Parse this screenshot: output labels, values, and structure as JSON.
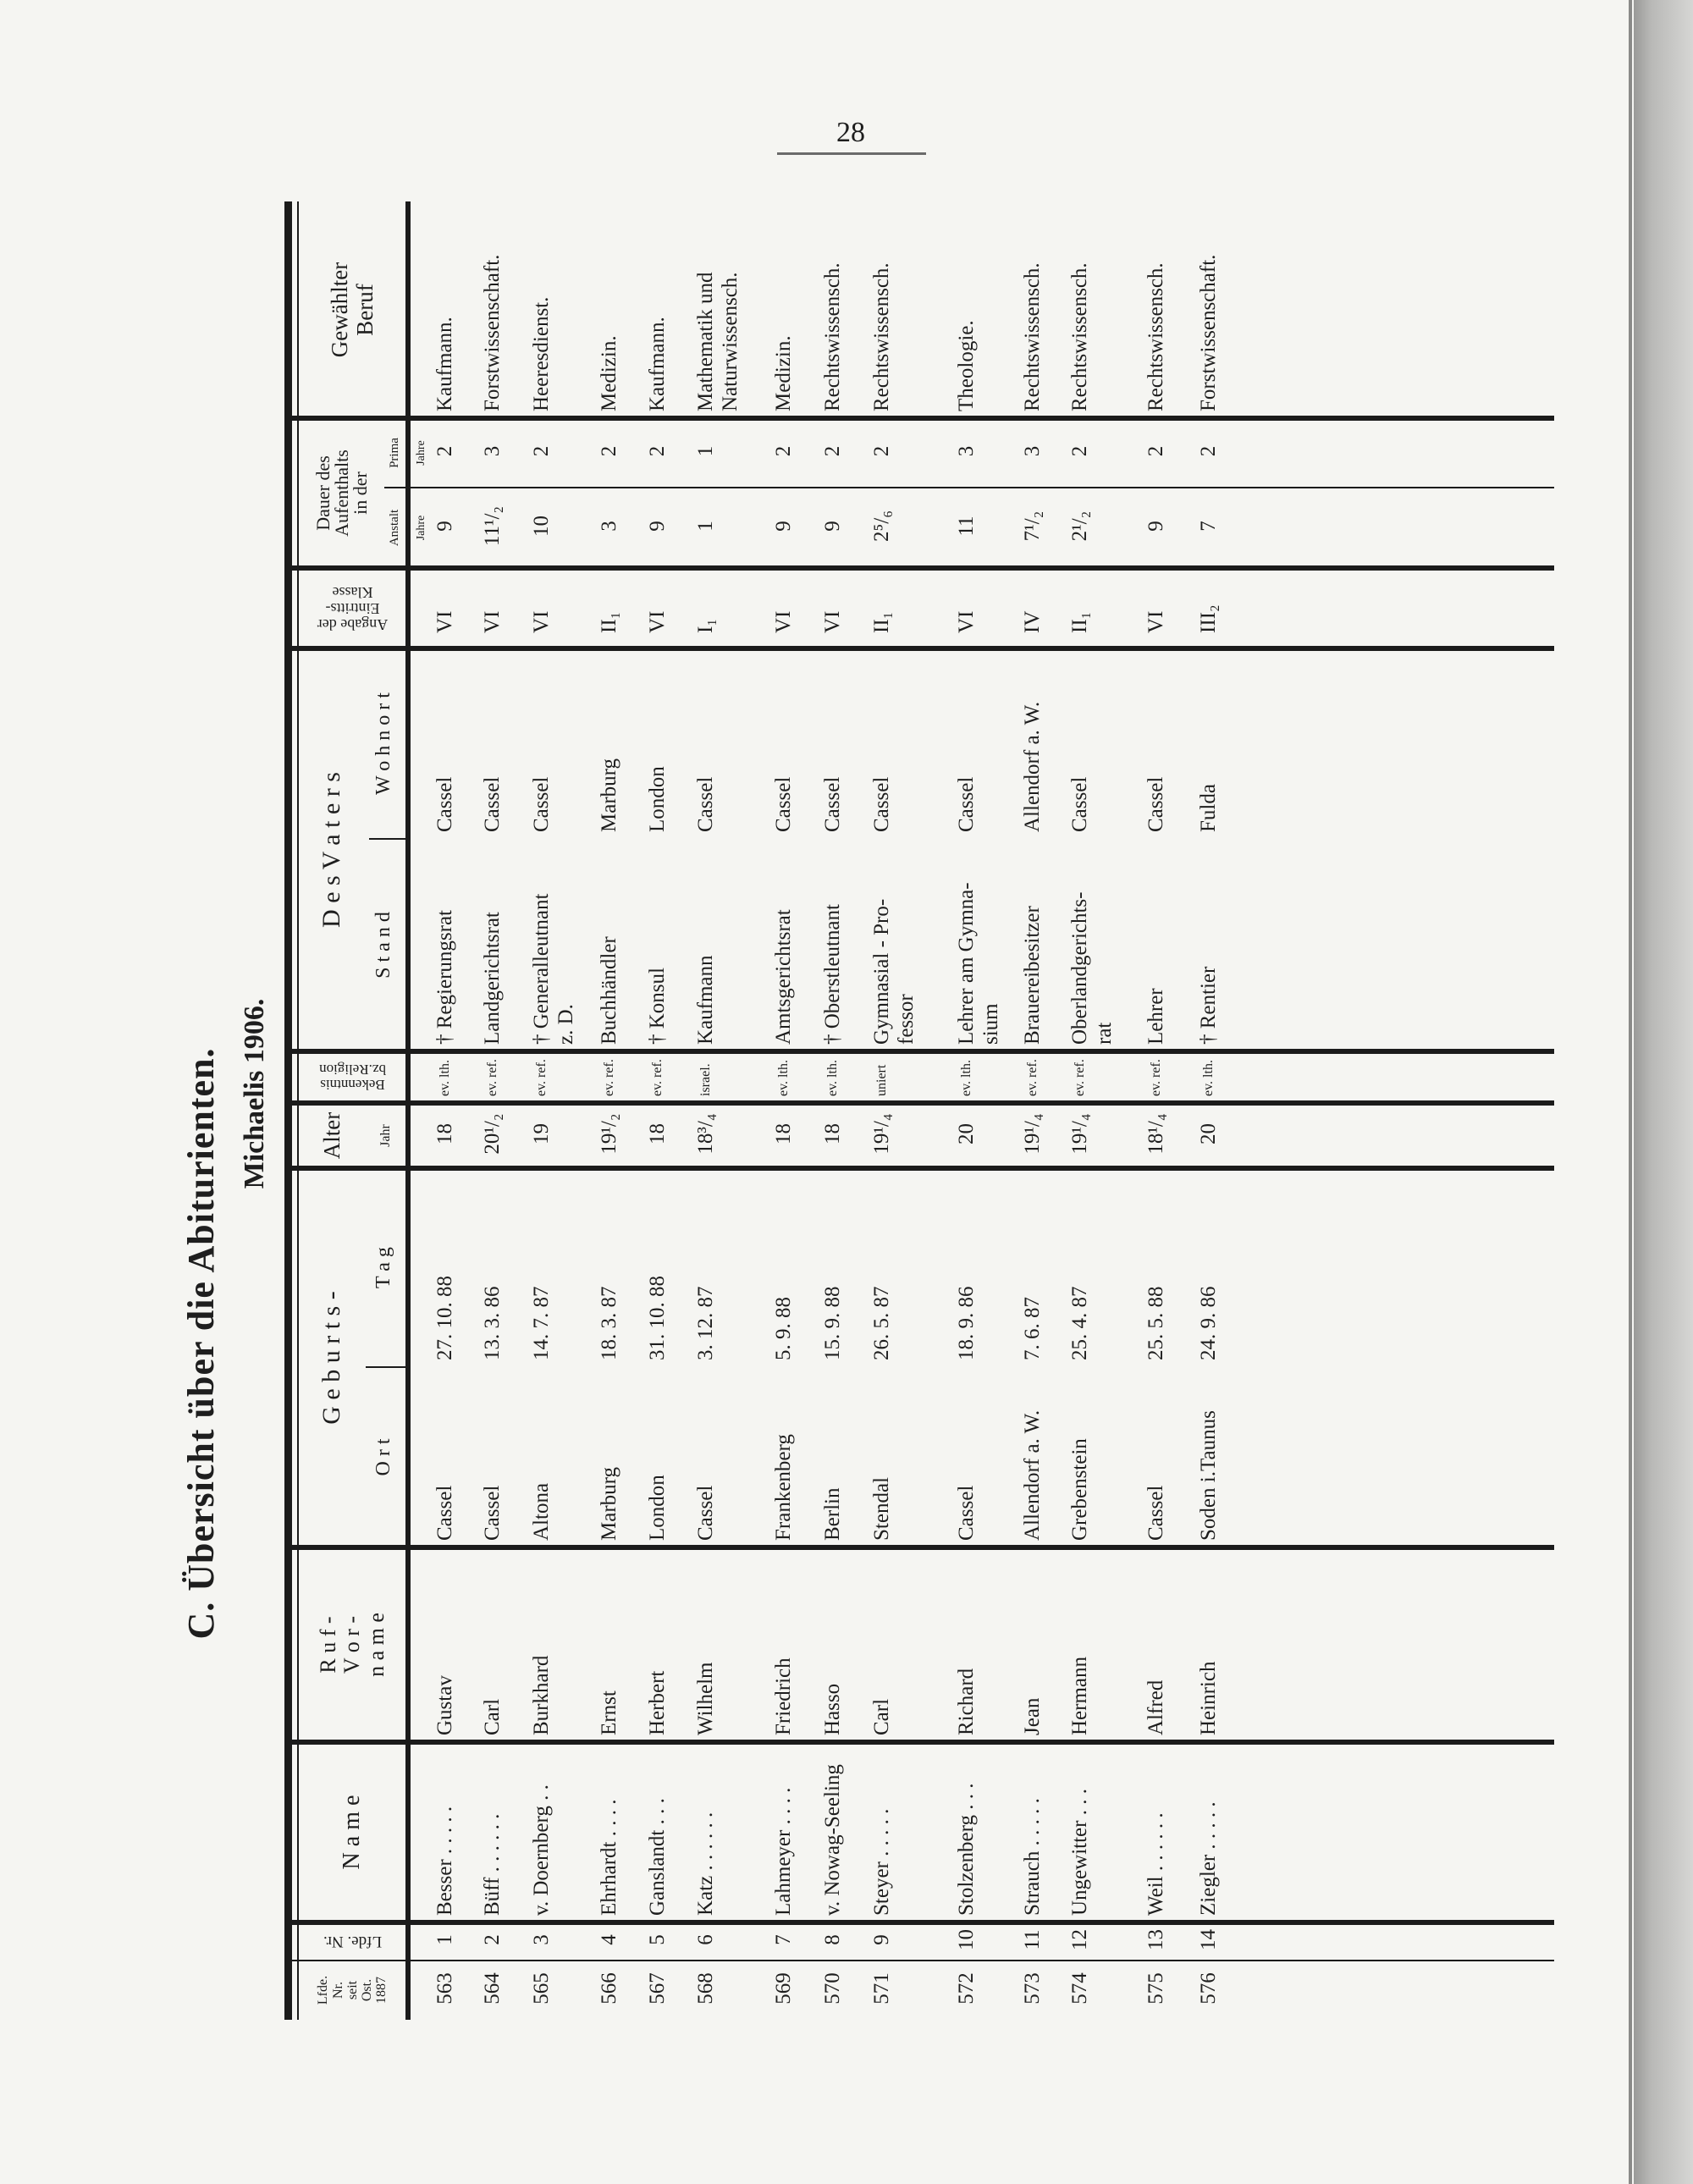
{
  "page_number": "28",
  "title": "C.   Übersicht über die Abiturienten.",
  "subtitle": "Michaelis 1906.",
  "headers": {
    "lfd_seit": "Lfde.\nNr.\nseit\nOst.\n1887",
    "lfd_nr": "Lfde. Nr.",
    "name": "N a m e",
    "rufname": "R u f -\nV o r -\nn a m e",
    "geburts": "G e b u r t s -",
    "ort": "O r t",
    "tag": "T a g",
    "alter": "Alter",
    "alter_unit": "Jahr",
    "bekenntnis": "Bekenntnis\nbz.Religion",
    "vaters": "D e s    V a t e r s",
    "stand": "S t a n d",
    "wohnort": "W o h n o r t",
    "klasse": "Angabe der\nEintritts-\nKlasse",
    "dauer": "Dauer des\nAufenthalts\nin der",
    "anstalt": "Anstalt",
    "prima": "Prima",
    "jahre_anstalt": "Jahre",
    "jahre_prima": "Jahre",
    "beruf": "Gewählter\nBeruf"
  },
  "rows": [
    {
      "seit": "563",
      "nr": "1",
      "name": "Besser . . . . .",
      "rufname": "Gustav",
      "ort": "Cassel",
      "tag": "27. 10. 88",
      "alter": "18",
      "bekenntnis": "ev. lth.",
      "stand": "† Regierungsrat",
      "wohnort": "Cassel",
      "klasse": "VI",
      "anstalt": "9",
      "prima": "2",
      "beruf": "Kaufmann."
    },
    {
      "seit": "564",
      "nr": "2",
      "name": "Büff . . . . . .",
      "rufname": "Carl",
      "ort": "Cassel",
      "tag": "13.  3. 86",
      "alter": "20¹/₂",
      "bekenntnis": "ev. ref.",
      "stand": "Landgerichtsrat",
      "wohnort": "Cassel",
      "klasse": "VI",
      "anstalt": "11¹/₂",
      "prima": "3",
      "beruf": "Forstwissenschaft."
    },
    {
      "seit": "565",
      "nr": "3",
      "name": "v. Doernberg . .",
      "rufname": "Burkhard",
      "ort": "Altona",
      "tag": "14.  7. 87",
      "alter": "19",
      "bekenntnis": "ev. ref.",
      "stand": "† Generalleutnant\n   z. D.",
      "wohnort": "Cassel",
      "klasse": "VI",
      "anstalt": "10",
      "prima": "2",
      "beruf": "Heeresdienst."
    },
    {
      "seit": "566",
      "nr": "4",
      "name": "Ehrhardt . . . .",
      "rufname": "Ernst",
      "ort": "Marburg",
      "tag": "18.  3. 87",
      "alter": "19¹/₂",
      "bekenntnis": "ev. ref.",
      "stand": "Buchhändler",
      "wohnort": "Marburg",
      "klasse": "II₁",
      "anstalt": "3",
      "prima": "2",
      "beruf": "Medizin."
    },
    {
      "seit": "567",
      "nr": "5",
      "name": "Ganslandt . . .",
      "rufname": "Herbert",
      "ort": "London",
      "tag": "31. 10. 88",
      "alter": "18",
      "bekenntnis": "ev. ref.",
      "stand": "† Konsul",
      "wohnort": "London",
      "klasse": "VI",
      "anstalt": "9",
      "prima": "2",
      "beruf": "Kaufmann."
    },
    {
      "seit": "568",
      "nr": "6",
      "name": "Katz . . . . . .",
      "rufname": "Wilhelm",
      "ort": "Cassel",
      "tag": "3. 12. 87",
      "alter": "18³/₄",
      "bekenntnis": "israel.",
      "stand": "Kaufmann",
      "wohnort": "Cassel",
      "klasse": "I₁",
      "anstalt": "1",
      "prima": "1",
      "beruf": "Mathematik und\n  Naturwissensch."
    },
    {
      "seit": "569",
      "nr": "7",
      "name": "Lahmeyer . . . .",
      "rufname": "Friedrich",
      "ort": "Frankenberg",
      "tag": "5.  9. 88",
      "alter": "18",
      "bekenntnis": "ev. lth.",
      "stand": "Amtsgerichtsrat",
      "wohnort": "Cassel",
      "klasse": "VI",
      "anstalt": "9",
      "prima": "2",
      "beruf": "Medizin."
    },
    {
      "seit": "570",
      "nr": "8",
      "name": "v. Nowag-Seeling",
      "rufname": "Hasso",
      "ort": "Berlin",
      "tag": "15.  9. 88",
      "alter": "18",
      "bekenntnis": "ev. lth.",
      "stand": "† Oberstleutnant",
      "wohnort": "Cassel",
      "klasse": "VI",
      "anstalt": "9",
      "prima": "2",
      "beruf": "Rechtswissensch."
    },
    {
      "seit": "571",
      "nr": "9",
      "name": "Steyer . . . . .",
      "rufname": "Carl",
      "ort": "Stendal",
      "tag": "26.  5. 87",
      "alter": "19¹/₄",
      "bekenntnis": "uniert",
      "stand": "Gymnasial - Pro-\n   fessor",
      "wohnort": "Cassel",
      "klasse": "II₁",
      "anstalt": "2⁵/₆",
      "prima": "2",
      "beruf": "Rechtswissensch."
    },
    {
      "seit": "572",
      "nr": "10",
      "name": "Stolzenberg . . .",
      "rufname": "Richard",
      "ort": "Cassel",
      "tag": "18.  9. 86",
      "alter": "20",
      "bekenntnis": "ev. lth.",
      "stand": "Lehrer am Gymna-\n   sium",
      "wohnort": "Cassel",
      "klasse": "VI",
      "anstalt": "11",
      "prima": "3",
      "beruf": "Theologie."
    },
    {
      "seit": "573",
      "nr": "11",
      "name": "Strauch . . . . .",
      "rufname": "Jean",
      "ort": "Allendorf a. W.",
      "tag": "7.  6. 87",
      "alter": "19¹/₄",
      "bekenntnis": "ev. ref.",
      "stand": "Brauereibesitzer",
      "wohnort": "Allendorf a. W.",
      "klasse": "IV",
      "anstalt": "7¹/₂",
      "prima": "3",
      "beruf": "Rechtswissensch."
    },
    {
      "seit": "574",
      "nr": "12",
      "name": "Ungewitter . . .",
      "rufname": "Hermann",
      "ort": "Grebenstein",
      "tag": "25.  4. 87",
      "alter": "19¹/₄",
      "bekenntnis": "ev. ref.",
      "stand": "Oberlandgerichts-\n   rat",
      "wohnort": "Cassel",
      "klasse": "II₁",
      "anstalt": "2¹/₂",
      "prima": "2",
      "beruf": "Rechtswissensch."
    },
    {
      "seit": "575",
      "nr": "13",
      "name": "Weil . . . . . .",
      "rufname": "Alfred",
      "ort": "Cassel",
      "tag": "25.  5. 88",
      "alter": "18¹/₄",
      "bekenntnis": "ev. ref.",
      "stand": "Lehrer",
      "wohnort": "Cassel",
      "klasse": "VI",
      "anstalt": "9",
      "prima": "2",
      "beruf": "Rechtswissensch."
    },
    {
      "seit": "576",
      "nr": "14",
      "name": "Ziegler . . . . .",
      "rufname": "Heinrich",
      "ort": "Soden i.Taunus",
      "tag": "24.  9. 86",
      "alter": "20",
      "bekenntnis": "ev. lth.",
      "stand": "† Rentier",
      "wohnort": "Fulda",
      "klasse": "III₂",
      "anstalt": "7",
      "prima": "2",
      "beruf": "Forstwissenschaft."
    }
  ]
}
